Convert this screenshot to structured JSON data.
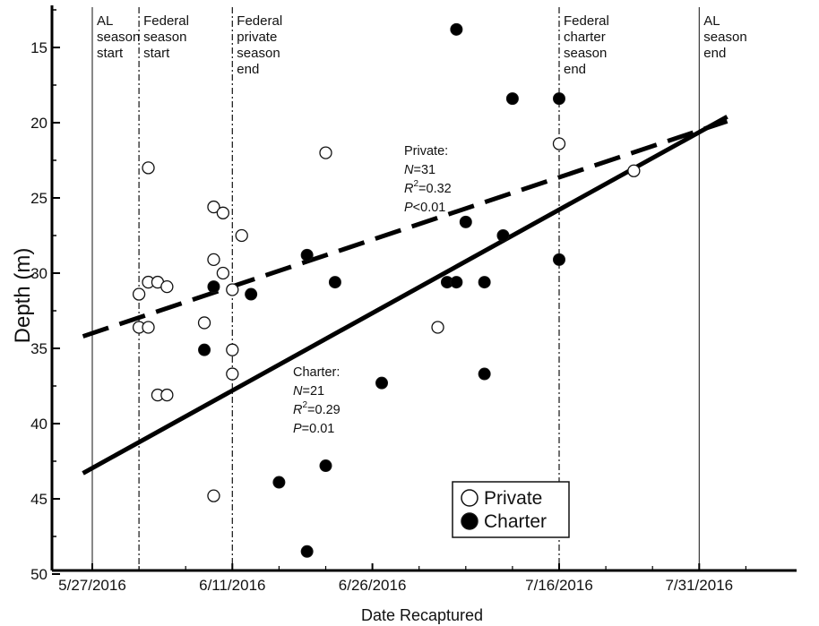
{
  "chart_data": {
    "type": "scatter",
    "xlabel": "Date Recaptured",
    "ylabel": "Depth (m)",
    "x_ticks": [
      "5/27/2016",
      "6/11/2016",
      "6/26/2016",
      "7/16/2016",
      "7/31/2016"
    ],
    "xlim": [
      "5/26/2016",
      "8/3/2016"
    ],
    "y_ticks": [
      15,
      20,
      25,
      30,
      35,
      40,
      45,
      50
    ],
    "ylim": [
      12.5,
      50
    ],
    "y_inverted": true,
    "grid": false,
    "legend": {
      "position": "bottom-right",
      "entries": [
        "Private",
        "Charter"
      ]
    },
    "event_lines": [
      {
        "date": "5/27/2016",
        "style": "solid",
        "label": [
          "AL",
          "season",
          "start"
        ]
      },
      {
        "date": "6/1/2016",
        "style": "dashdot",
        "label": [
          "Federal",
          "season",
          "start"
        ]
      },
      {
        "date": "6/11/2016",
        "style": "dashdot",
        "label": [
          "Federal",
          "private",
          "season",
          "end"
        ]
      },
      {
        "date": "7/16/2016",
        "style": "dashdot",
        "label": [
          "Federal",
          "charter",
          "season",
          "end"
        ]
      },
      {
        "date": "7/31/2016",
        "style": "solid",
        "label": [
          "AL",
          "season",
          "end"
        ]
      }
    ],
    "series": [
      {
        "name": "Private",
        "marker": "open-circle",
        "points": [
          {
            "x": "6/1/2016",
            "y": 31.4
          },
          {
            "x": "6/1/2016",
            "y": 33.6
          },
          {
            "x": "6/2/2016",
            "y": 23.0
          },
          {
            "x": "6/2/2016",
            "y": 30.6
          },
          {
            "x": "6/2/2016",
            "y": 33.6
          },
          {
            "x": "6/3/2016",
            "y": 30.6
          },
          {
            "x": "6/3/2016",
            "y": 38.1
          },
          {
            "x": "6/4/2016",
            "y": 30.9
          },
          {
            "x": "6/4/2016",
            "y": 38.1
          },
          {
            "x": "6/8/2016",
            "y": 33.3
          },
          {
            "x": "6/9/2016",
            "y": 25.6
          },
          {
            "x": "6/9/2016",
            "y": 29.1
          },
          {
            "x": "6/9/2016",
            "y": 44.8
          },
          {
            "x": "6/10/2016",
            "y": 26.0
          },
          {
            "x": "6/10/2016",
            "y": 30.0
          },
          {
            "x": "6/11/2016",
            "y": 31.1
          },
          {
            "x": "6/11/2016",
            "y": 35.1
          },
          {
            "x": "6/11/2016",
            "y": 36.7
          },
          {
            "x": "6/12/2016",
            "y": 27.5
          },
          {
            "x": "6/21/2016",
            "y": 22.0
          },
          {
            "x": "7/3/2016",
            "y": 33.6
          },
          {
            "x": "7/16/2016",
            "y": 21.4
          },
          {
            "x": "7/24/2016",
            "y": 23.2
          }
        ]
      },
      {
        "name": "Charter",
        "marker": "filled-circle",
        "points": [
          {
            "x": "6/8/2016",
            "y": 35.1
          },
          {
            "x": "6/9/2016",
            "y": 30.9
          },
          {
            "x": "6/13/2016",
            "y": 31.4
          },
          {
            "x": "6/16/2016",
            "y": 43.9
          },
          {
            "x": "6/19/2016",
            "y": 28.8
          },
          {
            "x": "6/19/2016",
            "y": 48.5
          },
          {
            "x": "6/21/2016",
            "y": 42.8
          },
          {
            "x": "6/22/2016",
            "y": 30.6
          },
          {
            "x": "6/27/2016",
            "y": 37.3
          },
          {
            "x": "7/4/2016",
            "y": 30.6
          },
          {
            "x": "7/5/2016",
            "y": 13.8
          },
          {
            "x": "7/5/2016",
            "y": 30.6
          },
          {
            "x": "7/6/2016",
            "y": 26.6
          },
          {
            "x": "7/8/2016",
            "y": 30.6
          },
          {
            "x": "7/8/2016",
            "y": 36.7
          },
          {
            "x": "7/10/2016",
            "y": 27.5
          },
          {
            "x": "7/11/2016",
            "y": 18.4
          },
          {
            "x": "7/16/2016",
            "y": 18.4
          },
          {
            "x": "7/16/2016",
            "y": 29.1
          }
        ]
      }
    ],
    "fit_lines": [
      {
        "name": "Private",
        "style": "dashed",
        "from": {
          "x": "5/26/2016",
          "y": 34.2
        },
        "to": {
          "x": "8/3/2016",
          "y": 19.9
        }
      },
      {
        "name": "Charter",
        "style": "solid",
        "from": {
          "x": "5/26/2016",
          "y": 43.3
        },
        "to": {
          "x": "8/3/2016",
          "y": 19.6
        }
      }
    ],
    "annotations": [
      {
        "name": "Private",
        "lines": [
          {
            "text": "Private:"
          },
          {
            "prefix": "N",
            "text": "=31"
          },
          {
            "prefix": "R",
            "sup": "2",
            "text": "=0.32"
          },
          {
            "prefix": "P",
            "text": "<0.01"
          }
        ]
      },
      {
        "name": "Charter",
        "lines": [
          {
            "text": "Charter:"
          },
          {
            "prefix": "N",
            "text": "=21"
          },
          {
            "prefix": "R",
            "sup": "2",
            "text": "=0.29"
          },
          {
            "prefix": "P",
            "text": "=0.01"
          }
        ]
      }
    ]
  }
}
